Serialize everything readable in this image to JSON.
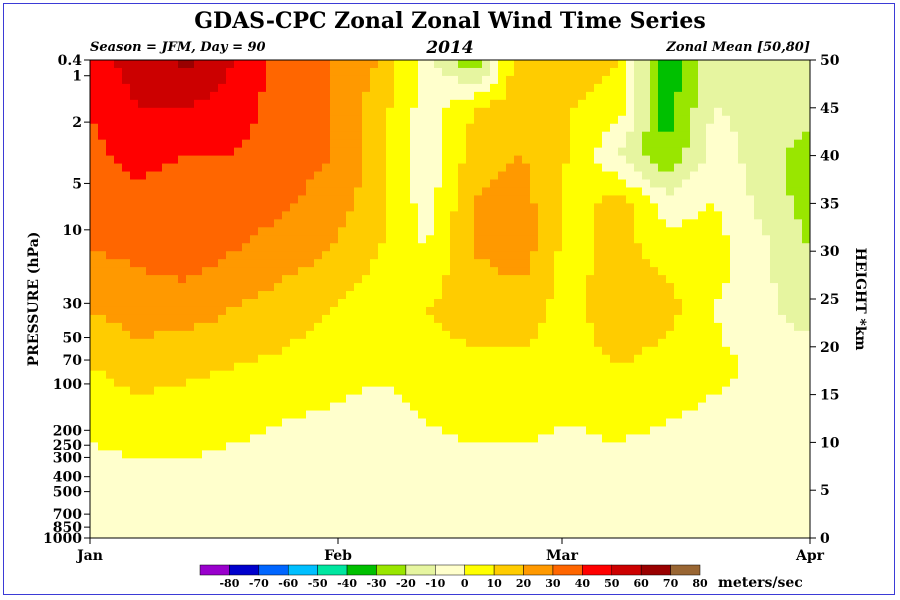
{
  "chart_data": {
    "type": "heatmap",
    "title": "GDAS-CPC Zonal Zonal Wind Time Series",
    "subtitle_left": "Season = JFM, Day =  90",
    "subtitle_center": "2014",
    "subtitle_right": "Zonal Mean [50,80]",
    "ylabel": "PRESSURE (hPa)",
    "ylabel_right": "HEIGHT *km",
    "x_ticks": [
      "Jan",
      "Feb",
      "Mar",
      "Apr"
    ],
    "x_tick_days": [
      0,
      31,
      59,
      90
    ],
    "xlim": [
      0,
      90
    ],
    "y_ticks_pressure": [
      "0.4",
      "1",
      "2",
      "5",
      "10",
      "30",
      "50",
      "70",
      "100",
      "200",
      "250",
      "300",
      "400",
      "500",
      "700",
      "850",
      "1000"
    ],
    "y_ticks_height": [
      "0",
      "5",
      "10",
      "15",
      "20",
      "25",
      "30",
      "35",
      "40",
      "45",
      "50"
    ],
    "ylim_height_km": [
      0,
      50
    ],
    "colorbar": {
      "ticks": [
        "-80",
        "-70",
        "-60",
        "-50",
        "-40",
        "-30",
        "-20",
        "-10",
        "0",
        "10",
        "20",
        "30",
        "40",
        "50",
        "60",
        "70",
        "80"
      ],
      "colors": [
        "#9900cc",
        "#0000cc",
        "#0066ff",
        "#00bfff",
        "#00e6a0",
        "#00c000",
        "#99e600",
        "#e6f5a0",
        "#ffffcc",
        "#ffff00",
        "#ffcc00",
        "#ff9900",
        "#ff6600",
        "#ff0000",
        "#cc0000",
        "#990000",
        "#996633"
      ],
      "units": "meters/sec"
    },
    "series": [
      {
        "name": "0.4",
        "height_km": 50,
        "values": [
          55,
          65,
          72,
          60,
          45,
          40,
          30,
          5,
          -20,
          30,
          25,
          20,
          -30,
          0,
          0
        ]
      },
      {
        "name": "1",
        "height_km": 45,
        "values": [
          50,
          60,
          60,
          55,
          45,
          40,
          25,
          5,
          20,
          25,
          20,
          15,
          -25,
          0,
          -5
        ]
      },
      {
        "name": "2",
        "height_km": 40,
        "values": [
          48,
          52,
          50,
          50,
          45,
          40,
          25,
          0,
          25,
          30,
          20,
          0,
          -20,
          5,
          -15
        ]
      },
      {
        "name": "5",
        "height_km": 35,
        "values": [
          45,
          48,
          45,
          45,
          42,
          35,
          25,
          5,
          30,
          35,
          15,
          25,
          5,
          10,
          -15
        ]
      },
      {
        "name": "10",
        "height_km": 30,
        "values": [
          40,
          42,
          45,
          40,
          35,
          30,
          20,
          10,
          30,
          35,
          15,
          25,
          15,
          15,
          -10
        ]
      },
      {
        "name": "30",
        "height_km": 24,
        "values": [
          30,
          35,
          35,
          30,
          25,
          20,
          15,
          20,
          25,
          25,
          15,
          30,
          25,
          10,
          -5
        ]
      },
      {
        "name": "70",
        "height_km": 18,
        "values": [
          20,
          25,
          22,
          20,
          18,
          15,
          12,
          15,
          18,
          18,
          15,
          20,
          15,
          12,
          5
        ]
      },
      {
        "name": "200",
        "height_km": 12,
        "values": [
          12,
          15,
          15,
          12,
          10,
          8,
          5,
          10,
          12,
          12,
          10,
          12,
          10,
          8,
          5
        ]
      },
      {
        "name": "500",
        "height_km": 5,
        "values": [
          5,
          6,
          6,
          5,
          5,
          4,
          4,
          5,
          5,
          5,
          5,
          5,
          4,
          5,
          4
        ]
      },
      {
        "name": "1000",
        "height_km": 0,
        "values": [
          0,
          1,
          1,
          0,
          1,
          0,
          0,
          1,
          0,
          0,
          0,
          0,
          0,
          1,
          0
        ]
      }
    ],
    "x_days": [
      0,
      6,
      12,
      18,
      24,
      30,
      36,
      42,
      48,
      54,
      60,
      66,
      72,
      78,
      90
    ]
  }
}
